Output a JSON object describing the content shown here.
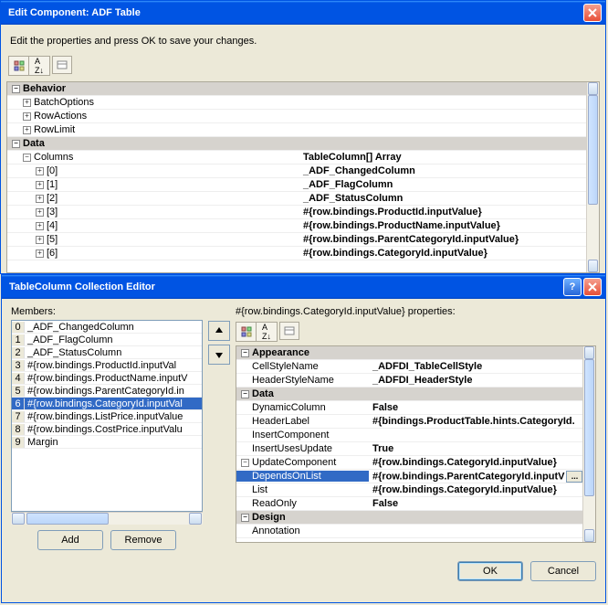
{
  "win1": {
    "title": "Edit Component: ADF Table",
    "instruction": "Edit the properties and press OK to save your changes.",
    "categories": {
      "behavior": "Behavior",
      "data": "Data"
    },
    "rows": [
      {
        "k": "BatchOptions",
        "v": ""
      },
      {
        "k": "RowActions",
        "v": ""
      },
      {
        "k": "RowLimit",
        "v": ""
      }
    ],
    "columns": {
      "k": "Columns",
      "v": "TableColumn[] Array"
    },
    "items": [
      {
        "k": "[0]",
        "v": "_ADF_ChangedColumn"
      },
      {
        "k": "[1]",
        "v": "_ADF_FlagColumn"
      },
      {
        "k": "[2]",
        "v": "_ADF_StatusColumn"
      },
      {
        "k": "[3]",
        "v": "#{row.bindings.ProductId.inputValue}"
      },
      {
        "k": "[4]",
        "v": "#{row.bindings.ProductName.inputValue}"
      },
      {
        "k": "[5]",
        "v": "#{row.bindings.ParentCategoryId.inputValue}"
      },
      {
        "k": "[6]",
        "v": "#{row.bindings.CategoryId.inputValue}"
      }
    ]
  },
  "win2": {
    "title": "TableColumn Collection Editor",
    "membersLabel": "Members:",
    "propsLabel": "#{row.bindings.CategoryId.inputValue} properties:",
    "members": [
      "_ADF_ChangedColumn",
      "_ADF_FlagColumn",
      "_ADF_StatusColumn",
      "#{row.bindings.ProductId.inputVal",
      "#{row.bindings.ProductName.inputV",
      "#{row.bindings.ParentCategoryId.in",
      "#{row.bindings.CategoryId.inputVal",
      "#{row.bindings.ListPrice.inputValue",
      "#{row.bindings.CostPrice.inputValu",
      "Margin"
    ],
    "selectedMember": 6,
    "cats": {
      "appearance": "Appearance",
      "data": "Data",
      "design": "Design"
    },
    "props": {
      "appearance": [
        {
          "k": "CellStyleName",
          "v": "_ADFDI_TableCellStyle"
        },
        {
          "k": "HeaderStyleName",
          "v": "_ADFDI_HeaderStyle"
        }
      ],
      "data": [
        {
          "k": "DynamicColumn",
          "v": "False"
        },
        {
          "k": "HeaderLabel",
          "v": "#{bindings.ProductTable.hints.CategoryId."
        },
        {
          "k": "InsertComponent",
          "v": ""
        },
        {
          "k": "InsertUsesUpdate",
          "v": "True"
        },
        {
          "k": "UpdateComponent",
          "v": "#{row.bindings.CategoryId.inputValue}",
          "exp": true
        },
        {
          "k": "DependsOnList",
          "v": "#{row.bindings.ParentCategoryId.inputV",
          "sel": true,
          "ellipsis": true,
          "indent": true
        },
        {
          "k": "List",
          "v": "#{row.bindings.CategoryId.inputValue}",
          "indent": true
        },
        {
          "k": "ReadOnly",
          "v": "False",
          "indent": true
        }
      ],
      "design": [
        {
          "k": "Annotation",
          "v": ""
        }
      ]
    },
    "buttons": {
      "add": "Add",
      "remove": "Remove",
      "ok": "OK",
      "cancel": "Cancel"
    }
  }
}
